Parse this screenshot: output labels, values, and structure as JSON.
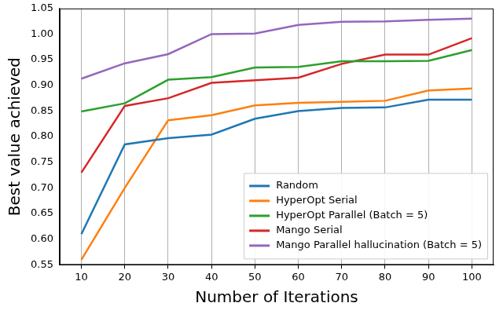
{
  "chart_data": {
    "type": "line",
    "x_label": "Number of Iterations",
    "y_label": "Best value achieved",
    "x": [
      10,
      20,
      30,
      40,
      50,
      60,
      70,
      80,
      90,
      100
    ],
    "series": [
      {
        "name": "Random",
        "color": "#1f77b4",
        "values": [
          0.61,
          0.785,
          0.797,
          0.804,
          0.835,
          0.85,
          0.856,
          0.857,
          0.872,
          0.872
        ]
      },
      {
        "name": "HyperOpt Serial",
        "color": "#ff7f0e",
        "values": [
          0.56,
          0.7,
          0.832,
          0.842,
          0.861,
          0.866,
          0.868,
          0.87,
          0.89,
          0.894
        ]
      },
      {
        "name": "HyperOpt Parallel (Batch = 5)",
        "color": "#2ca02c",
        "values": [
          0.849,
          0.865,
          0.911,
          0.916,
          0.935,
          0.936,
          0.947,
          0.947,
          0.948,
          0.969
        ]
      },
      {
        "name": "Mango Serial",
        "color": "#d62728",
        "values": [
          0.73,
          0.86,
          0.875,
          0.905,
          0.91,
          0.915,
          0.942,
          0.96,
          0.96,
          0.992
        ]
      },
      {
        "name": "Mango Parallel hallucination (Batch = 5)",
        "color": "#9467bd",
        "values": [
          0.913,
          0.943,
          0.961,
          1.0,
          1.001,
          1.018,
          1.024,
          1.025,
          1.028,
          1.03
        ]
      }
    ],
    "xlim": [
      5,
      105
    ],
    "xticks": [
      10,
      20,
      30,
      40,
      50,
      60,
      70,
      80,
      90,
      100
    ],
    "ylim": [
      0.55,
      1.05
    ],
    "yticks": [
      0.55,
      {
        "value": 0.6,
        "label": "0.60"
      },
      0.65,
      {
        "value": 0.7,
        "label": "0.70"
      },
      0.75,
      {
        "value": 0.8,
        "label": "0.80"
      },
      0.85,
      {
        "value": 0.9,
        "label": "0.90"
      },
      0.95,
      {
        "value": 1.0,
        "label": "1.00"
      },
      1.05
    ],
    "grid": "x",
    "legend": "lower right"
  }
}
